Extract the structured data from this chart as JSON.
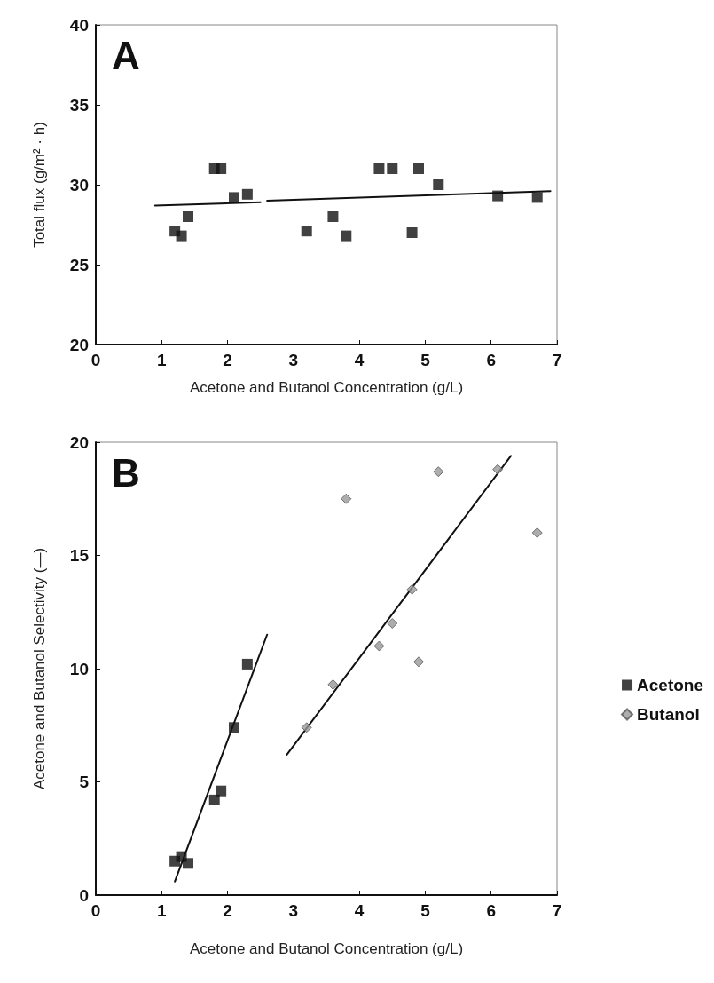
{
  "chart_data": [
    {
      "type": "scatter",
      "annotations": [
        "A"
      ],
      "xlabel": "Acetone and Butanol Concentration (g/L)",
      "ylabel": "Total flux (g/m² · h)",
      "xlim": [
        0,
        7
      ],
      "xticks": [
        0,
        1,
        2,
        3,
        4,
        5,
        6,
        7
      ],
      "ylim": [
        20,
        40
      ],
      "yticks": [
        20,
        25,
        30,
        35,
        40
      ],
      "grid": false,
      "legend": false,
      "series": [
        {
          "color": "#111111",
          "marker": "square",
          "x": [
            1.2,
            1.3,
            1.4,
            1.8,
            1.9,
            2.1,
            2.3,
            3.2,
            3.6,
            3.8,
            4.3,
            4.5,
            4.8,
            4.9,
            5.2,
            6.1,
            6.7
          ],
          "values": [
            27.1,
            26.8,
            28.0,
            31.0,
            31.0,
            29.2,
            29.4,
            27.1,
            28.0,
            26.8,
            31.0,
            31.0,
            27.0,
            31.0,
            30.0,
            29.3,
            29.2
          ]
        },
        {
          "type": "line",
          "color": "#111111",
          "marker": "none",
          "x": [
            0.9,
            2.5
          ],
          "values": [
            28.7,
            28.9
          ]
        },
        {
          "type": "line",
          "color": "#111111",
          "marker": "none",
          "x": [
            2.6,
            6.9
          ],
          "values": [
            29.0,
            29.6
          ]
        }
      ]
    },
    {
      "type": "scatter",
      "annotations": [
        "B"
      ],
      "xlabel": "Acetone and Butanol Concentration (g/L)",
      "ylabel": "Acetone and Butanol Selectivity (—)",
      "xlim": [
        0,
        7
      ],
      "xticks": [
        0,
        1,
        2,
        3,
        4,
        5,
        6,
        7
      ],
      "ylim": [
        0,
        20
      ],
      "yticks": [
        0,
        5,
        10,
        15,
        20
      ],
      "grid": false,
      "legend": "right",
      "series": [
        {
          "name": "Acetone",
          "color": "#111111",
          "marker": "square",
          "x": [
            1.2,
            1.3,
            1.4,
            1.8,
            1.9,
            2.1,
            2.3
          ],
          "values": [
            1.5,
            1.7,
            1.4,
            4.2,
            4.6,
            7.4,
            10.2
          ]
        },
        {
          "name": "Butanol",
          "color": "#999999",
          "marker": "diamond",
          "x": [
            3.2,
            3.6,
            3.8,
            4.3,
            4.5,
            4.8,
            4.9,
            5.2,
            6.1,
            6.7
          ],
          "values": [
            7.4,
            9.3,
            17.5,
            11.0,
            12.0,
            13.5,
            10.3,
            18.7,
            18.8,
            16.0
          ]
        },
        {
          "type": "line",
          "color": "#111111",
          "marker": "none",
          "x": [
            1.2,
            2.6
          ],
          "values": [
            0.6,
            11.5
          ]
        },
        {
          "type": "line",
          "color": "#111111",
          "marker": "none",
          "x": [
            2.9,
            6.3
          ],
          "values": [
            6.2,
            19.4
          ]
        }
      ]
    }
  ]
}
